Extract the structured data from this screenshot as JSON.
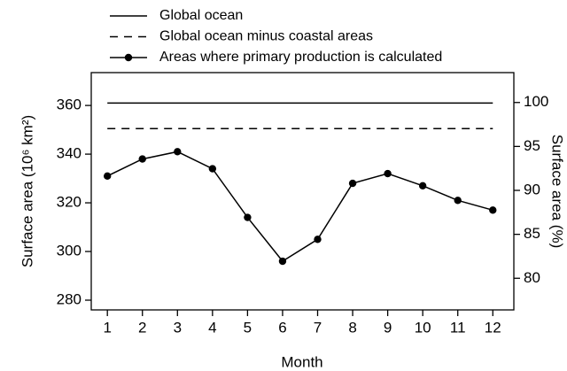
{
  "chart_data": {
    "type": "line",
    "xlabel": "Month",
    "ylabel": "Surface area (10⁶ km²)",
    "y2label": "Surface area (%)",
    "x": [
      1,
      2,
      3,
      4,
      5,
      6,
      7,
      8,
      9,
      10,
      11,
      12
    ],
    "xlim": [
      0.54,
      12.6
    ],
    "xticks": [
      1,
      2,
      3,
      4,
      5,
      6,
      7,
      8,
      9,
      10,
      11,
      12
    ],
    "ylim": [
      276,
      373.5
    ],
    "yticks": [
      280,
      300,
      320,
      340,
      360
    ],
    "y2lim": [
      76.4,
      103.4
    ],
    "y2ticks": [
      80,
      85,
      90,
      95,
      100
    ],
    "legend": "top",
    "series": [
      {
        "name": "Global ocean",
        "color": "#000000",
        "linestyle": "solid",
        "marker": null,
        "values": [
          361,
          361,
          361,
          361,
          361,
          361,
          361,
          361,
          361,
          361,
          361,
          361
        ]
      },
      {
        "name": "Global ocean minus coastal areas",
        "color": "#000000",
        "linestyle": "dashed",
        "marker": null,
        "values": [
          350.5,
          350.5,
          350.5,
          350.5,
          350.5,
          350.5,
          350.5,
          350.5,
          350.5,
          350.5,
          350.5,
          350.5
        ]
      },
      {
        "name": "Areas where primary production is calculated",
        "color": "#000000",
        "linestyle": "solid",
        "marker": "circle",
        "values": [
          331,
          338,
          341,
          334,
          314,
          296,
          305,
          328,
          332,
          327,
          321,
          317
        ]
      }
    ]
  }
}
